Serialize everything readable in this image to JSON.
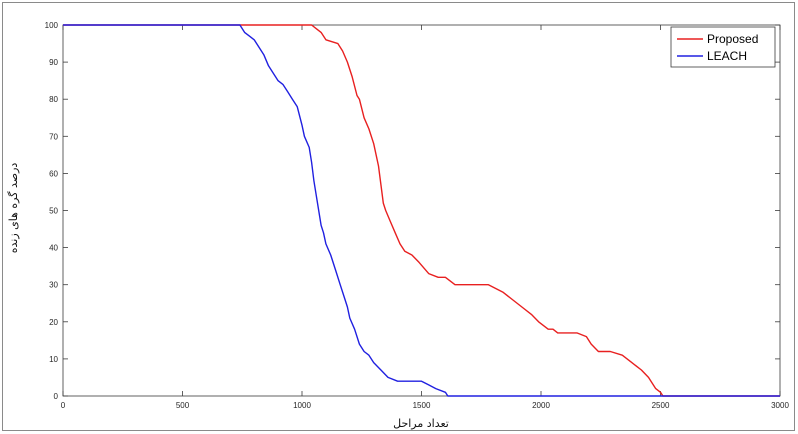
{
  "chart_data": {
    "type": "line",
    "xlabel": "تعداد مراحل",
    "ylabel": "درصد گره های زنده",
    "xlim": [
      0,
      3000
    ],
    "ylim": [
      0,
      100
    ],
    "xticks": [
      0,
      500,
      1000,
      1500,
      2000,
      2500,
      3000
    ],
    "yticks": [
      0,
      10,
      20,
      30,
      40,
      50,
      60,
      70,
      80,
      90,
      100
    ],
    "grid": false,
    "legend_position": "top-right",
    "series": [
      {
        "name": "Proposed",
        "color": "#e82020",
        "x": [
          0,
          1040,
          1060,
          1080,
          1100,
          1150,
          1170,
          1190,
          1210,
          1230,
          1240,
          1260,
          1280,
          1300,
          1320,
          1340,
          1350,
          1370,
          1390,
          1410,
          1430,
          1460,
          1490,
          1530,
          1570,
          1600,
          1640,
          1700,
          1780,
          1840,
          1880,
          1920,
          1960,
          1990,
          2030,
          2050,
          2070,
          2150,
          2190,
          2210,
          2240,
          2290,
          2340,
          2380,
          2420,
          2450,
          2480,
          2500,
          2510,
          3000
        ],
        "y": [
          100,
          100,
          99,
          98,
          96,
          95,
          93,
          90,
          86,
          81,
          80,
          75,
          72,
          68,
          62,
          52,
          50,
          47,
          44,
          41,
          39,
          38,
          36,
          33,
          32,
          32,
          30,
          30,
          30,
          28,
          26,
          24,
          22,
          20,
          18,
          18,
          17,
          17,
          16,
          14,
          12,
          12,
          11,
          9,
          7,
          5,
          2,
          1,
          0,
          0
        ]
      },
      {
        "name": "LEACH",
        "color": "#2020e0",
        "x": [
          0,
          740,
          760,
          780,
          800,
          820,
          840,
          860,
          880,
          900,
          920,
          940,
          960,
          980,
          1000,
          1010,
          1030,
          1040,
          1050,
          1060,
          1070,
          1080,
          1090,
          1100,
          1120,
          1140,
          1160,
          1180,
          1190,
          1200,
          1220,
          1240,
          1260,
          1280,
          1300,
          1330,
          1360,
          1400,
          1450,
          1500,
          1530,
          1560,
          1600,
          1610,
          3000
        ],
        "y": [
          100,
          100,
          98,
          97,
          96,
          94,
          92,
          89,
          87,
          85,
          84,
          82,
          80,
          78,
          73,
          70,
          67,
          63,
          58,
          54,
          50,
          46,
          44,
          41,
          38,
          34,
          30,
          26,
          24,
          21,
          18,
          14,
          12,
          11,
          9,
          7,
          5,
          4,
          4,
          4,
          3,
          2,
          1,
          0,
          0
        ]
      }
    ]
  }
}
